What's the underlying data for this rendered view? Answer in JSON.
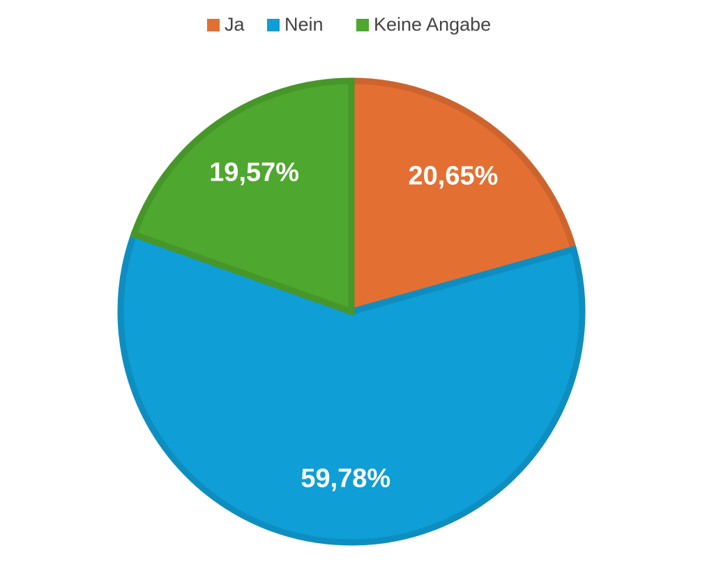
{
  "chart_data": {
    "type": "pie",
    "categories": [
      "Ja",
      "Nein",
      "Keine Angabe"
    ],
    "values": [
      20.65,
      59.78,
      19.57
    ],
    "value_labels": [
      "20,65%",
      "59,78%",
      "19,57%"
    ],
    "colors": [
      "#e46f32",
      "#0f9ed5",
      "#4ea72e"
    ],
    "legend": "top"
  }
}
